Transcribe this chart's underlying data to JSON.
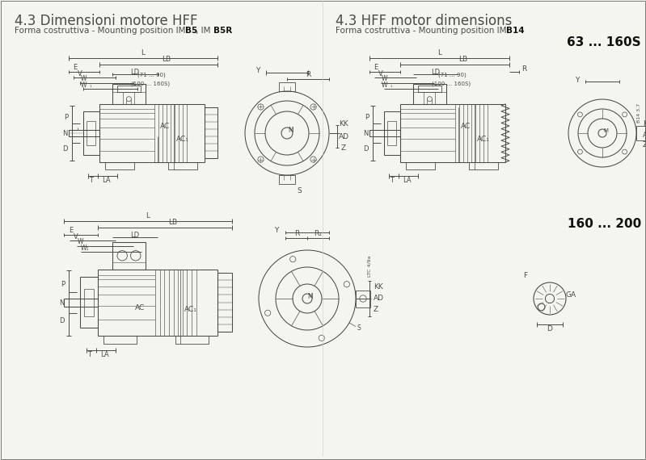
{
  "title_left": "4.3 Dimensioni motore HFF",
  "title_right": "4.3 HFF motor dimensions",
  "subtitle_left_plain": "Forma costruttiva - Mounting position IM ",
  "subtitle_left_bold": "B5",
  "subtitle_left_plain2": ", IM ",
  "subtitle_left_bold2": "B5R",
  "subtitle_right_plain": "Forma costruttiva - Mounting position IM ",
  "subtitle_right_bold": "B14",
  "size_label_top": "63 ... 160S",
  "size_label_bottom": "160 ... 200",
  "bg_color": "#f5f5f0",
  "line_color": "#4a4a4a",
  "text_color": "#4a4a4a",
  "title_color": "#4a4a4a",
  "bold_color": "#222222",
  "size_label_color": "#111111"
}
